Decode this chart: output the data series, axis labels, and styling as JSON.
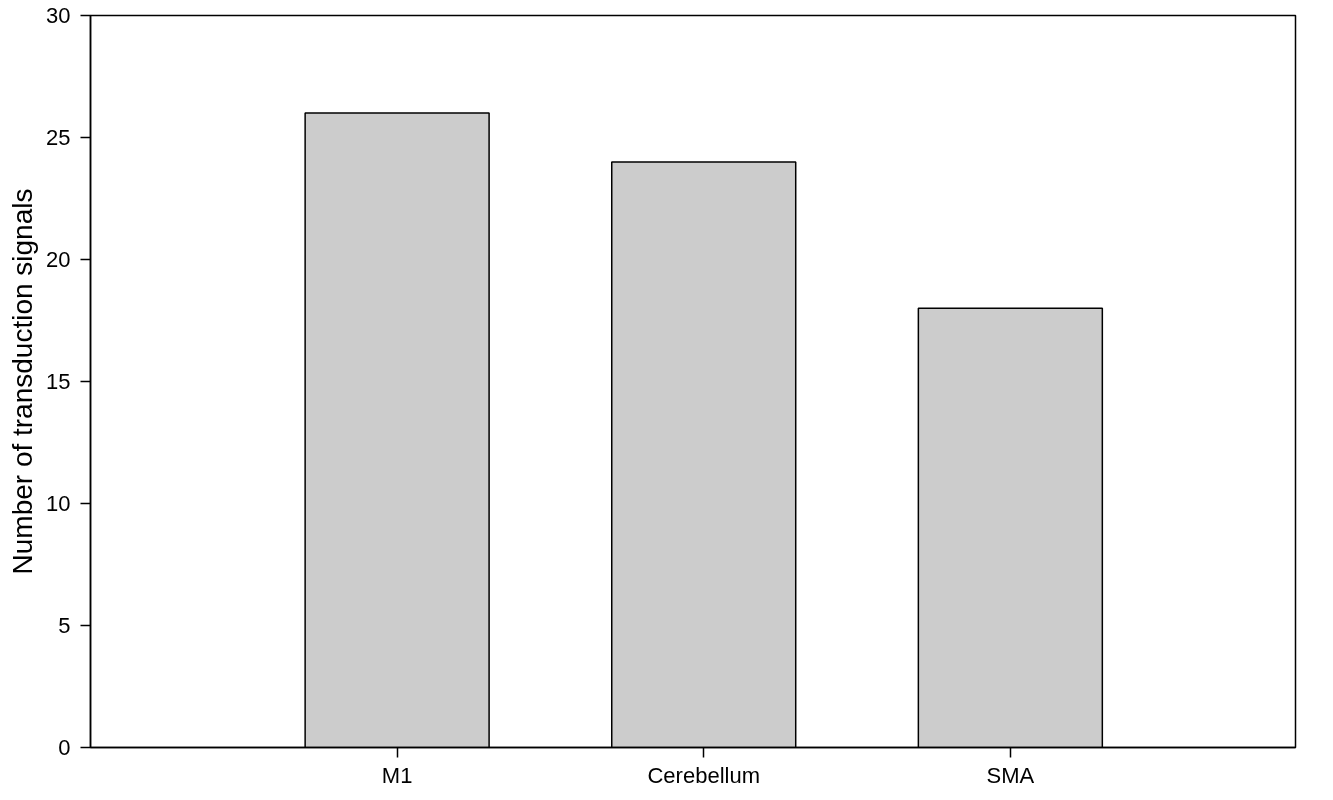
{
  "chart_data": {
    "type": "bar",
    "ylabel": "Number of transduction signals",
    "categories": [
      "M1",
      "Cerebellum",
      "SMA"
    ],
    "values": [
      26,
      24,
      18
    ],
    "color": "#cccccc",
    "ylim": [
      0,
      30
    ],
    "yticks": [
      0,
      5,
      10,
      15,
      20,
      25,
      30
    ],
    "grid": false
  }
}
